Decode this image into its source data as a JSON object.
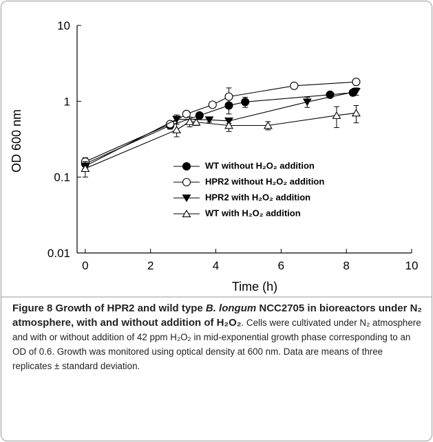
{
  "chart_data": {
    "type": "line",
    "xlabel": "Time (h)",
    "ylabel": "OD 600 nm",
    "xlim": [
      -0.25,
      10
    ],
    "xticks": [
      0,
      2,
      4,
      6,
      8,
      10
    ],
    "ylim": [
      0.01,
      10
    ],
    "yscale": "log",
    "yticks": [
      {
        "value": 10,
        "label": "10"
      },
      {
        "value": 1,
        "label": "1"
      },
      {
        "value": 0.1,
        "label": "0.1"
      },
      {
        "value": 0.01,
        "label": "0.01"
      }
    ],
    "series": [
      {
        "name": "WT without H₂O₂ addition",
        "color": "#000000",
        "marker": "circle-filled",
        "x": [
          0,
          2.6,
          3.5,
          4.4,
          4.9,
          7.5,
          8.2
        ],
        "values": [
          0.15,
          0.48,
          0.65,
          0.88,
          0.98,
          1.22,
          1.3
        ],
        "errors": [
          0.02,
          0.05,
          0.05,
          0.2,
          0.15,
          0.08,
          0.12
        ]
      },
      {
        "name": "HPR2 without H₂O₂ addition",
        "color": "#000000",
        "marker": "circle-open",
        "x": [
          0,
          2.6,
          3.1,
          3.9,
          4.4,
          6.4,
          8.3
        ],
        "values": [
          0.16,
          0.5,
          0.68,
          0.9,
          1.15,
          1.6,
          1.8
        ],
        "errors": [
          0.02,
          0.04,
          0.06,
          0.08,
          0.35,
          0.1,
          0.12
        ]
      },
      {
        "name": "HPR2 with H₂O₂ addition",
        "color": "#000000",
        "marker": "triangle-down-filled",
        "x": [
          0,
          2.8,
          3.8,
          4.4,
          6.8,
          8.3
        ],
        "values": [
          0.14,
          0.58,
          0.57,
          0.55,
          0.98,
          1.35
        ],
        "errors": [
          0.02,
          0.08,
          0.04,
          0.04,
          0.15,
          0.15
        ]
      },
      {
        "name": "WT with H₂O₂ addition",
        "color": "#000000",
        "marker": "triangle-up-open",
        "x": [
          0,
          2.8,
          3.2,
          3.4,
          4.4,
          5.6,
          7.7,
          8.3
        ],
        "values": [
          0.13,
          0.42,
          0.54,
          0.53,
          0.48,
          0.48,
          0.65,
          0.7
        ],
        "errors": [
          0.03,
          0.08,
          0.08,
          0.05,
          0.08,
          0.06,
          0.2,
          0.18
        ]
      }
    ]
  },
  "caption": {
    "label": "Figure 8",
    "title_parts": [
      " Growth of HPR2 and wild type ",
      "B. longum",
      " NCC2705 in bioreactors under N₂ atmosphere, with and without addition of H₂O₂"
    ],
    "text": ". Cells were cultivated under N₂ atmosphere and with or without addition of 42 ppm H₂O₂ in mid-exponential growth phase corresponding to an OD of 0.6. Growth was monitored using optical density at 600 nm. Data are means of three replicates ± standard deviation."
  }
}
